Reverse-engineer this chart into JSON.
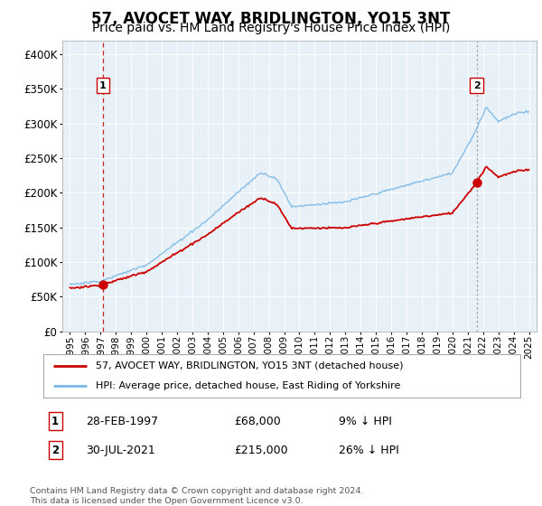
{
  "title": "57, AVOCET WAY, BRIDLINGTON, YO15 3NT",
  "subtitle": "Price paid vs. HM Land Registry's House Price Index (HPI)",
  "legend_line1": "57, AVOCET WAY, BRIDLINGTON, YO15 3NT (detached house)",
  "legend_line2": "HPI: Average price, detached house, East Riding of Yorkshire",
  "annotation1_date": "28-FEB-1997",
  "annotation1_price": "£68,000",
  "annotation1_hpi": "9% ↓ HPI",
  "annotation2_date": "30-JUL-2021",
  "annotation2_price": "£215,000",
  "annotation2_hpi": "26% ↓ HPI",
  "footer": "Contains HM Land Registry data © Crown copyright and database right 2024.\nThis data is licensed under the Open Government Licence v3.0.",
  "sale1_year": 1997.15,
  "sale1_value": 68000,
  "sale2_year": 2021.58,
  "sale2_value": 215000,
  "hpi_line_color": "#7ab8e8",
  "sale_line_color": "#cc0000",
  "sale1_vline_color": "#cc0000",
  "sale2_vline_color": "#7ab8e8",
  "plot_bg_color": "#e8f0f8",
  "ylim_min": 0,
  "ylim_max": 420000,
  "xlim_min": 1994.5,
  "xlim_max": 2025.5,
  "title_fontsize": 12,
  "subtitle_fontsize": 10,
  "yticks": [
    0,
    50000,
    100000,
    150000,
    200000,
    250000,
    300000,
    350000,
    400000
  ]
}
